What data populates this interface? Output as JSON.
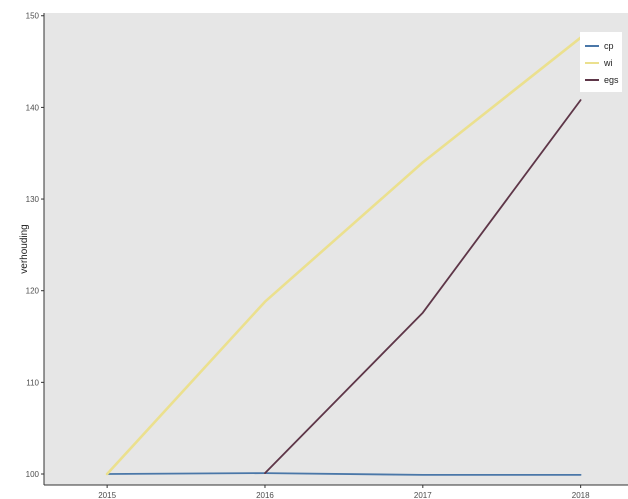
{
  "chart_data": {
    "type": "line",
    "title": "",
    "xlabel": "",
    "ylabel": "verhouding",
    "x": [
      2015,
      2016,
      2017,
      2018
    ],
    "xticks": [
      "2015",
      "2016",
      "2017",
      "2018"
    ],
    "xlim": [
      2014.6,
      2018.3
    ],
    "yticks": [
      "100",
      "110",
      "120",
      "130",
      "140",
      "150"
    ],
    "ylim": [
      98.8,
      150.3
    ],
    "grid": false,
    "legend_position": "top-right",
    "series": [
      {
        "name": "cp",
        "color": "#4a77a8",
        "values": [
          100,
          100.1,
          99.9,
          99.9
        ]
      },
      {
        "name": "wi",
        "color": "#ebe08e",
        "values": [
          100,
          118.8,
          134.0,
          147.6
        ]
      },
      {
        "name": "egs",
        "color": "#5e3648",
        "values": [
          null,
          100.1,
          117.6,
          140.8
        ]
      }
    ]
  }
}
